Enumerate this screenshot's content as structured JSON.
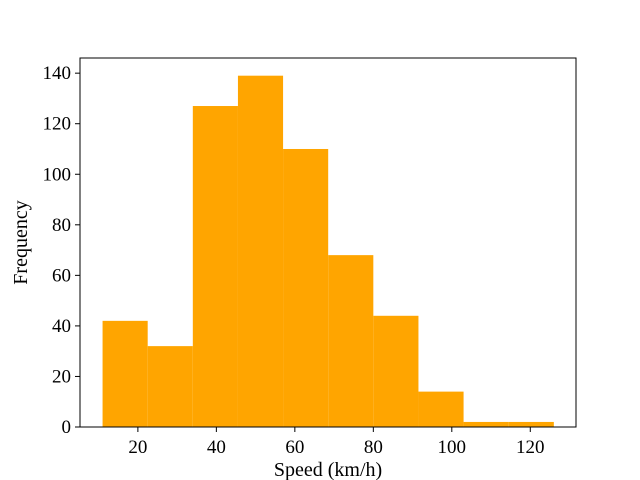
{
  "chart_data": {
    "type": "histogram",
    "title": "",
    "xlabel": "Speed (km/h)",
    "ylabel": "Frequency",
    "xlim": [
      5.25,
      131.65
    ],
    "ylim": [
      0,
      146
    ],
    "xticks": [
      20,
      40,
      60,
      80,
      100,
      120
    ],
    "yticks": [
      0,
      20,
      40,
      60,
      80,
      100,
      120,
      140
    ],
    "bar_color": "#ffa500",
    "bins": [
      {
        "x0": 11.0,
        "x1": 22.5,
        "count": 42
      },
      {
        "x0": 22.5,
        "x1": 34.0,
        "count": 32
      },
      {
        "x0": 34.0,
        "x1": 45.5,
        "count": 127
      },
      {
        "x0": 45.5,
        "x1": 57.0,
        "count": 139
      },
      {
        "x0": 57.0,
        "x1": 68.5,
        "count": 110
      },
      {
        "x0": 68.5,
        "x1": 80.0,
        "count": 68
      },
      {
        "x0": 80.0,
        "x1": 91.5,
        "count": 44
      },
      {
        "x0": 91.5,
        "x1": 103.0,
        "count": 14
      },
      {
        "x0": 103.0,
        "x1": 114.5,
        "count": 2
      },
      {
        "x0": 114.5,
        "x1": 126.0,
        "count": 2
      }
    ],
    "grid": false,
    "legend": "none"
  }
}
